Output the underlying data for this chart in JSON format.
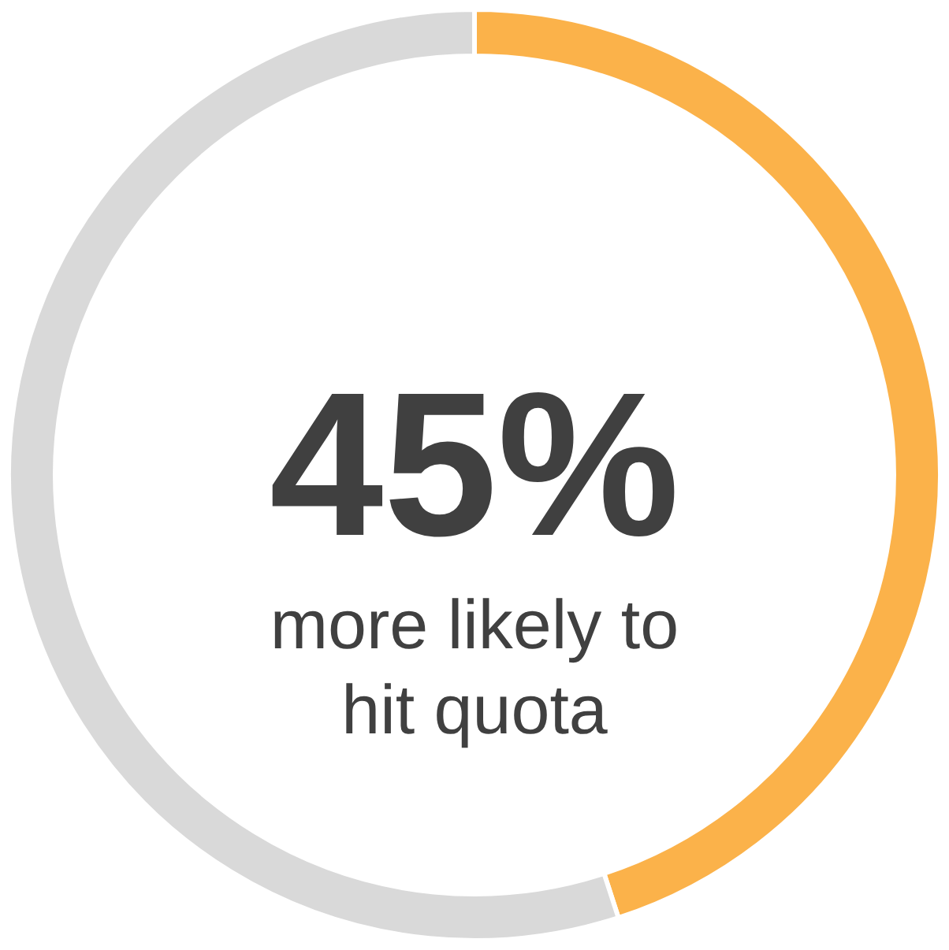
{
  "chart_data": {
    "type": "donut",
    "categories": [
      null,
      null
    ],
    "values": [
      45,
      55
    ],
    "colors": [
      "#fbb24a",
      "#d9d9d9"
    ],
    "value_labels": [
      "45%",
      null
    ],
    "annotations": [
      "more likely to hit quota"
    ],
    "legend": false
  }
}
